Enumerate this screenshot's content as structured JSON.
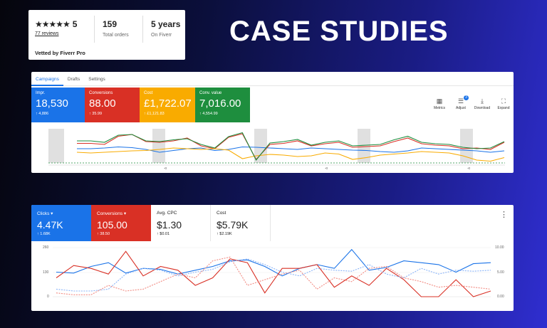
{
  "headline": "CASE STUDIES",
  "fiverr": {
    "stars": "★★★★★",
    "score": "5",
    "reviews": "77 reviews",
    "orders_value": "159",
    "orders_label": "Total orders",
    "years_value": "5 years",
    "years_label": "On Fiverr",
    "vetted": "Vetted by Fiverr Pro"
  },
  "panel1": {
    "tabs": [
      "Campaigns",
      "Drafts",
      "Settings"
    ],
    "metrics": [
      {
        "label": "Impr.",
        "value": "18,530",
        "change": "↑ 4,886",
        "color": "#1a73e8"
      },
      {
        "label": "Conversions",
        "value": "88.00",
        "change": "↑ 35.99",
        "color": "#d93025"
      },
      {
        "label": "Cost",
        "value": "£1,722.07",
        "change": "↑ £1,121.83",
        "color": "#f9ab00"
      },
      {
        "label": "Conv. value",
        "value": "7,016.00",
        "change": "↑ 4,554.99",
        "color": "#1e8e3e"
      }
    ],
    "tools": [
      "Metrics",
      "Adjust",
      "Download",
      "Expand"
    ],
    "adjust_badge": "3",
    "foot_marks": [
      "⊲",
      "⊲",
      "⊲"
    ]
  },
  "panel2": {
    "metrics": [
      {
        "label": "Clicks ▾",
        "value": "4.47K",
        "change": "↑ 1.68K"
      },
      {
        "label": "Conversions ▾",
        "value": "105.00",
        "change": "↑ 38.50"
      },
      {
        "label": "Avg. CPC",
        "value": "$1.30",
        "change": "↑ $0.01"
      },
      {
        "label": "Cost",
        "value": "$5.79K",
        "change": "↑ $2.19K"
      }
    ],
    "menu": "⋮",
    "y_left": [
      "260",
      "130",
      "0"
    ],
    "y_right": [
      "10.00",
      "5.00",
      "0.00"
    ]
  },
  "chart1": {
    "type": "line",
    "series": [
      {
        "name": "Impr.",
        "color": "#1a73e8",
        "values": [
          40,
          40,
          42,
          45,
          43,
          38,
          30,
          35,
          40,
          42,
          35,
          38,
          45,
          44,
          42,
          40,
          38,
          42,
          40,
          38,
          36,
          35,
          32,
          30,
          34,
          42,
          40,
          38,
          36,
          34,
          30,
          34
        ]
      },
      {
        "name": "Conversions",
        "color": "#d93025",
        "values": [
          55,
          55,
          52,
          75,
          80,
          60,
          58,
          62,
          70,
          48,
          40,
          72,
          82,
          10,
          52,
          55,
          62,
          48,
          54,
          58,
          44,
          46,
          48,
          60,
          70,
          54,
          50,
          48,
          40,
          42,
          38,
          58
        ]
      },
      {
        "name": "Cost",
        "color": "#f9ab00",
        "values": [
          30,
          28,
          30,
          32,
          34,
          35,
          38,
          42,
          40,
          38,
          40,
          36,
          12,
          20,
          24,
          22,
          18,
          20,
          28,
          25,
          10,
          15,
          22,
          25,
          28,
          32,
          30,
          28,
          20,
          8,
          5,
          15
        ]
      },
      {
        "name": "Conv. value",
        "color": "#1e8e3e",
        "values": [
          62,
          62,
          58,
          78,
          80,
          62,
          60,
          65,
          68,
          52,
          42,
          74,
          85,
          8,
          56,
          60,
          66,
          50,
          58,
          62,
          48,
          50,
          52,
          65,
          75,
          58,
          54,
          52,
          44,
          40,
          42,
          60
        ]
      }
    ]
  },
  "chart2": {
    "type": "line",
    "series": [
      {
        "name": "Clicks",
        "color": "#1a73e8",
        "values": [
          130,
          125,
          160,
          180,
          125,
          150,
          145,
          120,
          140,
          160,
          190,
          195,
          160,
          110,
          150,
          170,
          150,
          250,
          140,
          155,
          190,
          180,
          170,
          130,
          175,
          180
        ]
      },
      {
        "name": "Conversions",
        "color": "#d93025",
        "values": [
          100,
          165,
          150,
          120,
          240,
          110,
          160,
          140,
          60,
          100,
          200,
          180,
          20,
          150,
          150,
          170,
          50,
          110,
          60,
          150,
          90,
          0,
          0,
          90,
          0,
          30
        ]
      },
      {
        "name": "Clicks (compare)",
        "color": "#8ab4f8",
        "dashed": true,
        "values": [
          40,
          30,
          30,
          40,
          120,
          150,
          140,
          110,
          130,
          145,
          185,
          200,
          170,
          130,
          110,
          150,
          140,
          135,
          170,
          120,
          100,
          150,
          120,
          140,
          135,
          140
        ]
      },
      {
        "name": "Conversions (compare)",
        "color": "#f28b82",
        "dashed": true,
        "values": [
          20,
          10,
          10,
          60,
          30,
          40,
          80,
          120,
          100,
          190,
          210,
          60,
          90,
          120,
          140,
          40,
          100,
          80,
          150,
          160,
          100,
          80,
          50,
          60,
          50,
          40
        ]
      }
    ]
  }
}
